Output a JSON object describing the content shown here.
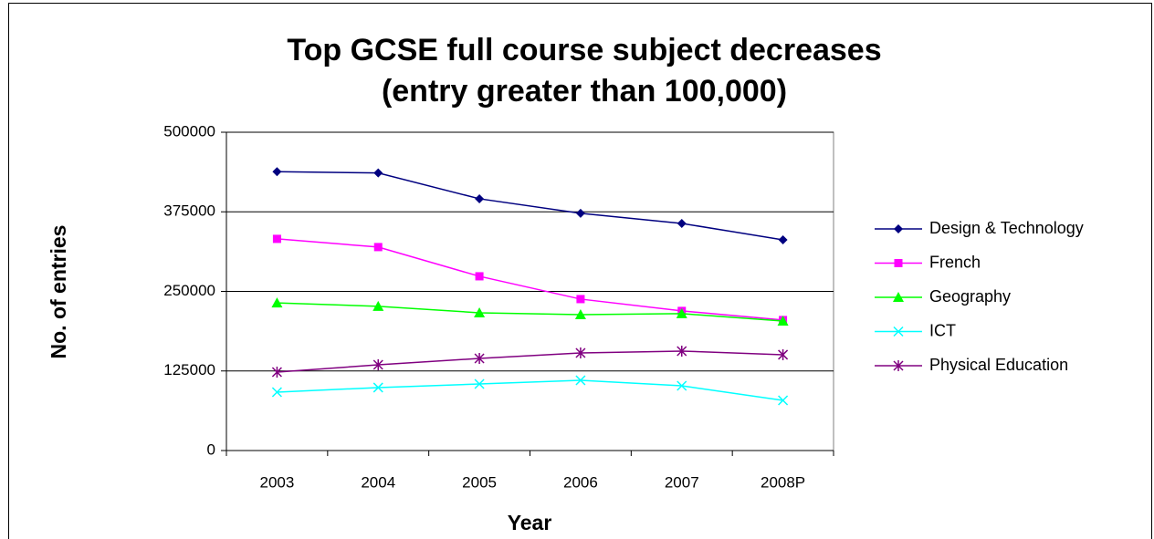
{
  "chart_data": {
    "type": "line",
    "title": [
      "Top GCSE full course subject decreases",
      "(entry greater than 100,000)"
    ],
    "x_label": "Year",
    "y_label": "No. of entries",
    "categories": [
      "2003",
      "2004",
      "2005",
      "2006",
      "2007",
      "2008P"
    ],
    "series": [
      {
        "name": "Design & Technology",
        "color": "#000080",
        "marker": "diamond",
        "values": [
          438000,
          436000,
          395500,
          372600,
          356800,
          331000
        ]
      },
      {
        "name": "French",
        "color": "#ff00ff",
        "marker": "square",
        "values": [
          332500,
          319600,
          273700,
          237900,
          219300,
          205000
        ]
      },
      {
        "name": "Geography",
        "color": "#00ff00",
        "marker": "triangle",
        "values": [
          232000,
          226500,
          216400,
          213500,
          215000,
          203500
        ]
      },
      {
        "name": "ICT",
        "color": "#00ffff",
        "marker": "x",
        "values": [
          91700,
          98900,
          104600,
          110300,
          101700,
          78800
        ]
      },
      {
        "name": "Physical Education",
        "color": "#800080",
        "marker": "asterisk",
        "values": [
          123200,
          134700,
          144700,
          153300,
          156200,
          150500
        ]
      }
    ],
    "ylim": [
      0,
      500000
    ],
    "yticks": [
      0,
      125000,
      250000,
      375000,
      500000
    ],
    "grid": true,
    "legend": "right"
  }
}
